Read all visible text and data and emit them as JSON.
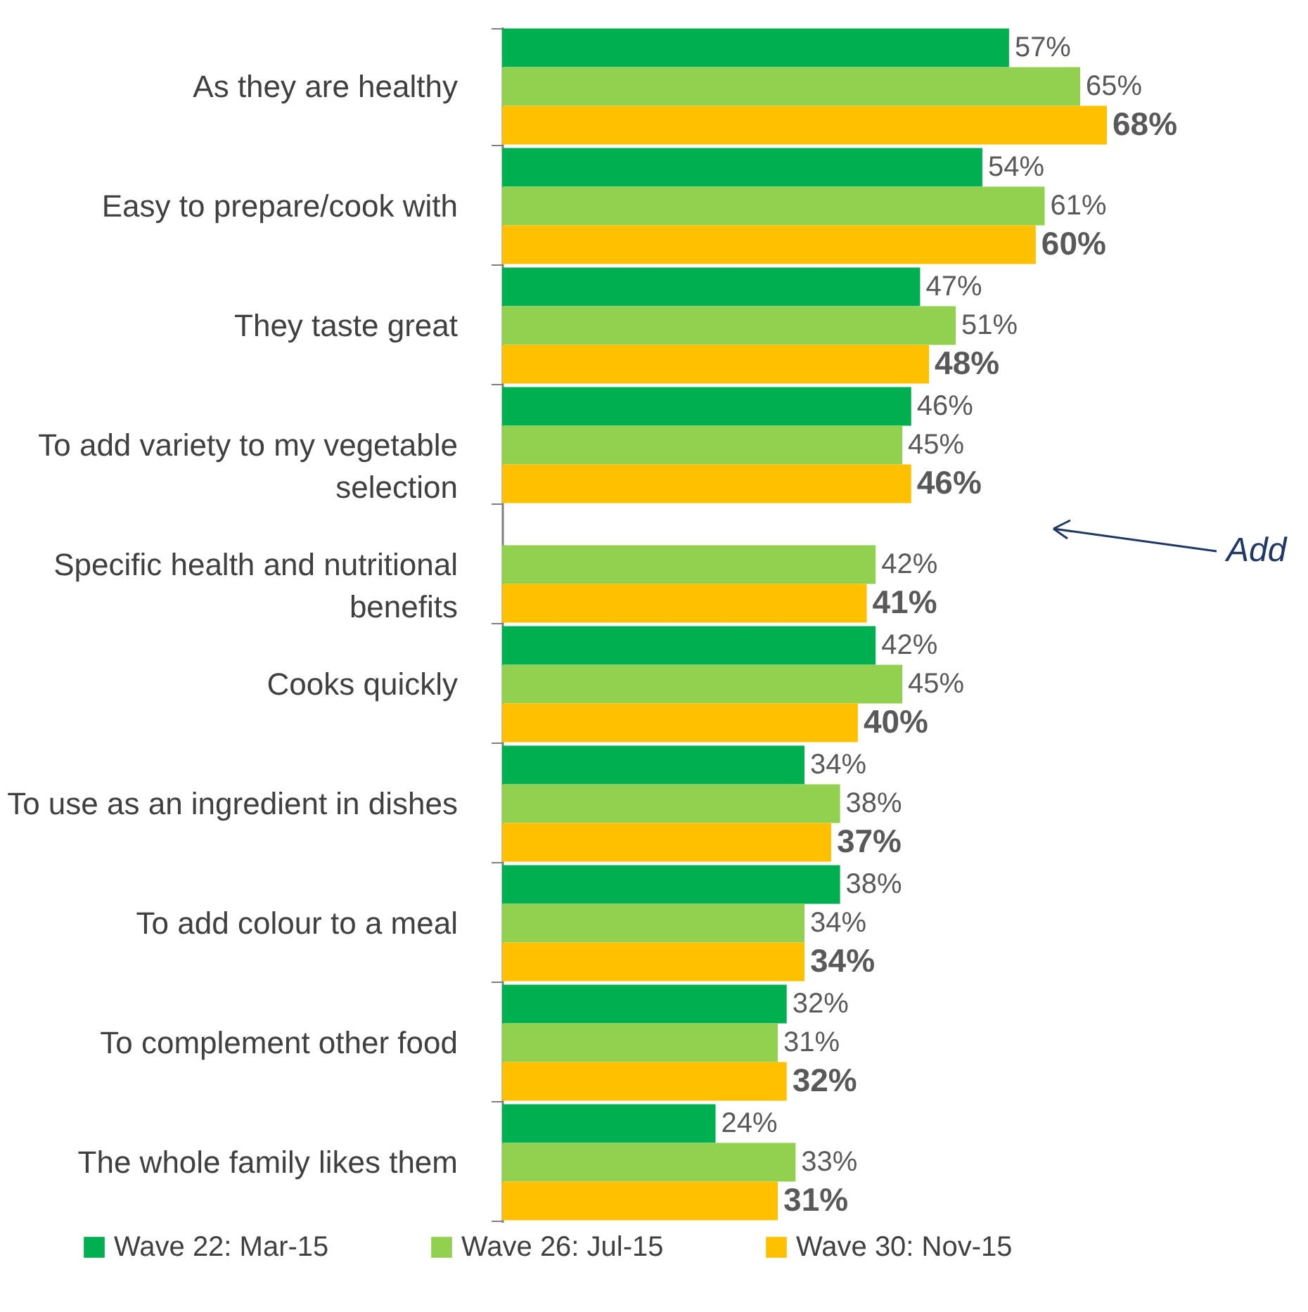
{
  "chart_data": {
    "type": "bar",
    "orientation": "horizontal",
    "legend": "bottom",
    "categories": [
      "As they are healthy",
      "Easy to prepare/cook with",
      "They taste great",
      "To add variety to my vegetable selection",
      "Specific health and nutritional benefits",
      "Cooks quickly",
      "To use as an ingredient in dishes",
      "To add colour to a meal",
      "To complement other food",
      "The whole family likes them"
    ],
    "series": [
      {
        "name": "Wave 22: Mar-15",
        "color": "#00b050",
        "values": [
          57,
          54,
          47,
          46,
          null,
          42,
          34,
          38,
          32,
          24
        ],
        "value_labels": [
          "57%",
          "54%",
          "47%",
          "46%",
          null,
          "42%",
          "34%",
          "38%",
          "32%",
          "24%"
        ]
      },
      {
        "name": "Wave 26: Jul-15",
        "color": "#92d050",
        "values": [
          65,
          61,
          51,
          45,
          42,
          45,
          38,
          34,
          31,
          33
        ],
        "value_labels": [
          "65%",
          "61%",
          "51%",
          "45%",
          "42%",
          "45%",
          "38%",
          "34%",
          "31%",
          "33%"
        ]
      },
      {
        "name": "Wave 30: Nov-15",
        "color": "#ffc000",
        "values": [
          68,
          60,
          48,
          46,
          41,
          40,
          37,
          34,
          32,
          31
        ],
        "value_labels": [
          "68%",
          "60%",
          "48%",
          "46%",
          "41%",
          "40%",
          "37%",
          "34%",
          "32%",
          "31%"
        ]
      }
    ],
    "annotations": [
      "Add"
    ]
  }
}
